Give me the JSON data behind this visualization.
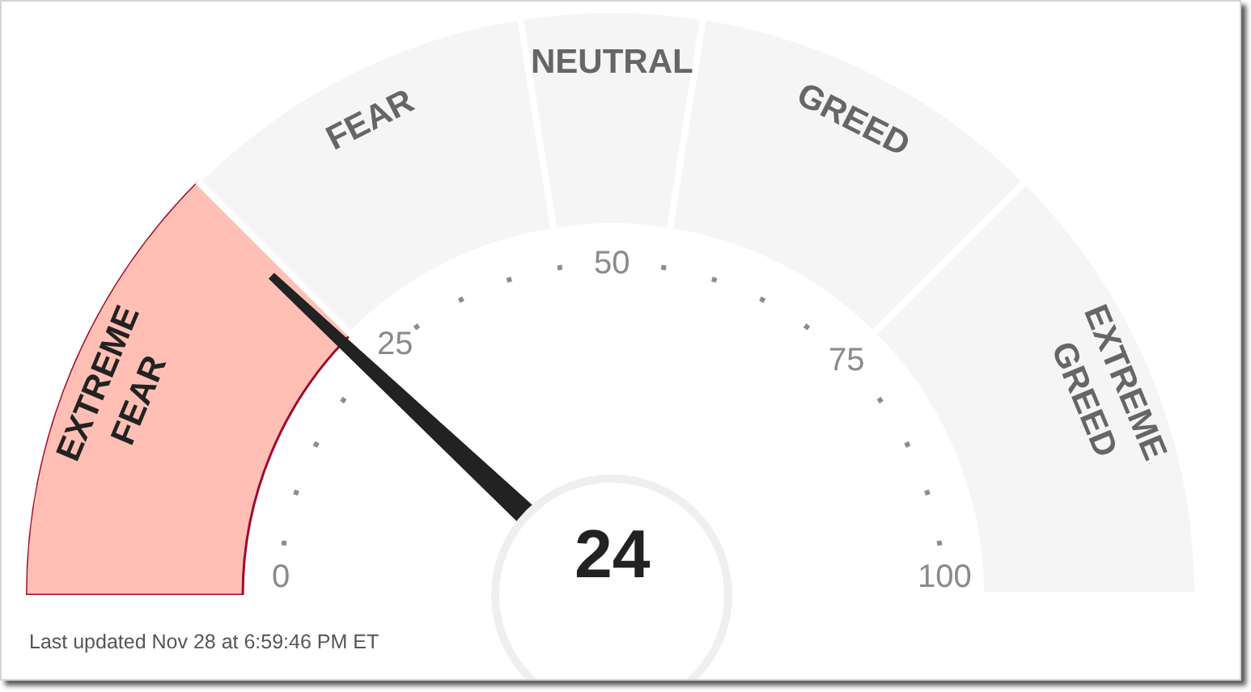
{
  "chart_data": {
    "type": "donut",
    "categories": [
      "EXTREME FEAR",
      "FEAR",
      "NEUTRAL",
      "GREED",
      "EXTREME GREED"
    ],
    "values": [
      25,
      20,
      10,
      20,
      25
    ],
    "colors": [
      "#ffbfb5",
      "#f5f5f5",
      "#f5f5f5",
      "#f5f5f5",
      "#f5f5f5"
    ],
    "needle": "EXTREME FEAR",
    "annotations": [
      "24",
      "0",
      "25",
      "50",
      "75",
      "100",
      "Last updated Nov 28 at 6:59:46 PM ET"
    ]
  }
}
